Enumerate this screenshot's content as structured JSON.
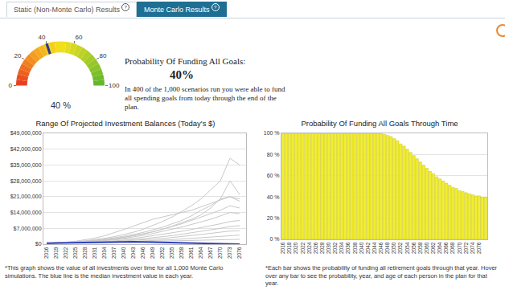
{
  "tabs": [
    {
      "label": "Static (Non-Monte Carlo) Results",
      "help_icon": "?",
      "active": false
    },
    {
      "label": "Monte Carlo Results",
      "help_icon": "?",
      "active": true
    }
  ],
  "summary": {
    "heading": "Probability Of Funding All Goals:",
    "value": "40%",
    "text": "In 400 of the 1,000 scenarios run you were able to fund all spending goals from today through the end of the plan."
  },
  "chart_data": [
    {
      "type": "gauge",
      "values": [
        40
      ],
      "value_labels": [
        "40 %"
      ],
      "color": "#1f3f8f",
      "ylim": [
        0,
        100
      ],
      "yticks": [
        0,
        20,
        40,
        60,
        80,
        100
      ]
    },
    {
      "type": "line",
      "title": "Range Of Projected Investment Balances (Today's $)",
      "x": [
        2016,
        2019,
        2022,
        2025,
        2028,
        2031,
        2034,
        2037,
        2040,
        2043,
        2046,
        2049,
        2052,
        2055,
        2058,
        2061,
        2064,
        2067,
        2070,
        2073,
        2076
      ],
      "series": [
        {
          "color": "#c8c8c8",
          "values": [
            400000,
            600000,
            800000,
            1100000,
            1500000,
            2000000,
            2600000,
            3300000,
            4200000,
            5300000,
            6600000,
            8200000,
            10000000,
            12000000,
            14500000,
            17000000,
            20000000,
            24000000,
            28000000,
            38000000,
            35000000
          ]
        },
        {
          "color": "#c8c8c8",
          "values": [
            400000,
            550000,
            750000,
            1000000,
            1300000,
            1700000,
            2200000,
            2800000,
            3500000,
            4300000,
            5200000,
            6300000,
            7500000,
            9000000,
            10500000,
            12500000,
            15000000,
            17000000,
            20000000,
            21000000,
            20000000
          ]
        },
        {
          "color": "#c8c8c8",
          "values": [
            400000,
            500000,
            700000,
            900000,
            1200000,
            1600000,
            2000000,
            2500000,
            3100000,
            3800000,
            4600000,
            5500000,
            6600000,
            8000000,
            9500000,
            11000000,
            13000000,
            16000000,
            20000000,
            28000000,
            22000000
          ]
        },
        {
          "color": "#c8c8c8",
          "values": [
            400000,
            550000,
            700000,
            900000,
            1200000,
            1500000,
            1900000,
            2400000,
            3000000,
            3700000,
            4500000,
            5400000,
            6500000,
            7800000,
            9000000,
            10500000,
            12000000,
            13500000,
            15000000,
            17000000,
            16000000
          ]
        },
        {
          "color": "#c8c8c8",
          "values": [
            400000,
            500000,
            650000,
            850000,
            1100000,
            1400000,
            1700000,
            2100000,
            2600000,
            3200000,
            3900000,
            4700000,
            5600000,
            6600000,
            7600000,
            8700000,
            9800000,
            11000000,
            12500000,
            14000000,
            13500000
          ]
        },
        {
          "color": "#c8c8c8",
          "values": [
            400000,
            500000,
            600000,
            800000,
            1000000,
            1200000,
            1500000,
            1800000,
            2200000,
            2600000,
            3100000,
            3700000,
            4300000,
            5000000,
            5700000,
            6500000,
            7300000,
            8200000,
            9000000,
            10000000,
            10500000
          ]
        },
        {
          "color": "#c8c8c8",
          "values": [
            400000,
            480000,
            580000,
            700000,
            850000,
            1000000,
            1200000,
            1400000,
            1700000,
            2000000,
            2400000,
            2800000,
            3300000,
            3800000,
            4400000,
            5000000,
            5600000,
            6300000,
            7000000,
            7800000,
            8200000
          ]
        },
        {
          "color": "#c8c8c8",
          "values": [
            400000,
            470000,
            550000,
            650000,
            780000,
            900000,
            1050000,
            1200000,
            1400000,
            1600000,
            1900000,
            2200000,
            2500000,
            2900000,
            3300000,
            3800000,
            4300000,
            4800000,
            5300000,
            5800000,
            6000000
          ]
        },
        {
          "color": "#c8c8c8",
          "values": [
            400000,
            460000,
            520000,
            600000,
            700000,
            800000,
            900000,
            1000000,
            1100000,
            1250000,
            1400000,
            1600000,
            1800000,
            2000000,
            2300000,
            2600000,
            2900000,
            3200000,
            3500000,
            3800000,
            4000000
          ]
        },
        {
          "color": "#c8c8c8",
          "values": [
            400000,
            450000,
            500000,
            560000,
            620000,
            700000,
            780000,
            860000,
            950000,
            1050000,
            1150000,
            1250000,
            1350000,
            1450000,
            1550000,
            1650000,
            1750000,
            1850000,
            1950000,
            2050000,
            2150000
          ]
        },
        {
          "color": "#c8c8c8",
          "values": [
            400000,
            600000,
            900000,
            1300000,
            1900000,
            2700000,
            3700000,
            5000000,
            6500000,
            8000000,
            9500000,
            11000000,
            12000000,
            13000000,
            14000000,
            15000000,
            16500000,
            18000000,
            19500000,
            21000000,
            19000000
          ]
        },
        {
          "color": "#2f3fbf",
          "values": [
            400000,
            500000,
            600000,
            700000,
            800000,
            900000,
            1000000,
            1100000,
            1150000,
            1100000,
            1000000,
            900000,
            800000,
            700000,
            550000,
            400000,
            250000,
            100000,
            0,
            0,
            0
          ]
        }
      ],
      "xlim": [
        2015,
        2078
      ],
      "xticks": [
        2016,
        2019,
        2022,
        2025,
        2028,
        2031,
        2034,
        2037,
        2040,
        2043,
        2046,
        2049,
        2052,
        2055,
        2058,
        2061,
        2064,
        2067,
        2070,
        2073,
        2076
      ],
      "ylim": [
        0,
        49000000
      ],
      "yticks": [
        {
          "value": 0,
          "label": "$0"
        },
        {
          "value": 7000000,
          "label": "$7,000,000"
        },
        {
          "value": 14000000,
          "label": "$14,000,000"
        },
        {
          "value": 21000000,
          "label": "$21,000,000"
        },
        {
          "value": 28000000,
          "label": "$28,000,000"
        },
        {
          "value": 35000000,
          "label": "$35,000,000"
        },
        {
          "value": 42000000,
          "label": "$42,000,000"
        },
        {
          "value": 49000000,
          "label": "$49,000,000"
        }
      ],
      "grid": true,
      "annotations": [
        "*This graph shows the value of all investments over time for all 1,000 Monte Carlo simulations. The blue line is the median investment value in each year."
      ]
    },
    {
      "type": "bar",
      "title": "Probability Of Funding All Goals Through Time",
      "x": [
        2016,
        2017,
        2018,
        2019,
        2020,
        2021,
        2022,
        2023,
        2024,
        2025,
        2026,
        2027,
        2028,
        2029,
        2030,
        2031,
        2032,
        2033,
        2034,
        2035,
        2036,
        2037,
        2038,
        2039,
        2040,
        2041,
        2042,
        2043,
        2044,
        2045,
        2046,
        2047,
        2048,
        2049,
        2050,
        2051,
        2052,
        2053,
        2054,
        2055,
        2056,
        2057,
        2058,
        2059,
        2060,
        2061,
        2062,
        2063,
        2064,
        2065,
        2066,
        2067,
        2068,
        2069,
        2070,
        2071,
        2072,
        2073,
        2074,
        2075,
        2076,
        2077,
        2078
      ],
      "values": [
        100,
        100,
        100,
        100,
        100,
        100,
        100,
        100,
        100,
        100,
        100,
        100,
        100,
        100,
        100,
        100,
        100,
        100,
        100,
        100,
        100,
        100,
        100,
        100,
        100,
        100,
        100,
        100,
        100,
        100,
        100,
        99,
        98,
        97,
        95,
        93,
        90,
        88,
        85,
        82,
        79,
        76,
        73,
        70,
        67,
        64,
        62,
        59,
        57,
        55,
        53,
        51,
        49,
        48,
        46,
        45,
        44,
        43,
        42,
        41,
        41,
        40,
        40
      ],
      "color": "#f2ee30",
      "xlim": [
        2015.5,
        2078.5
      ],
      "xticks": [
        2016,
        2018,
        2020,
        2022,
        2024,
        2026,
        2028,
        2030,
        2032,
        2034,
        2036,
        2038,
        2040,
        2042,
        2044,
        2046,
        2048,
        2050,
        2052,
        2054,
        2056,
        2058,
        2060,
        2062,
        2064,
        2066,
        2068,
        2070,
        2072,
        2074,
        2076
      ],
      "ylim": [
        0,
        100
      ],
      "yticks": [
        {
          "value": 0,
          "label": "0 %"
        },
        {
          "value": 20,
          "label": "20 %"
        },
        {
          "value": 40,
          "label": "40 %"
        },
        {
          "value": 60,
          "label": "60 %"
        },
        {
          "value": 80,
          "label": "80 %"
        },
        {
          "value": 100,
          "label": "100 %"
        }
      ],
      "grid": true,
      "annotations": [
        "*Each bar shows the probability of funding all retirement goals through that year. Hover over any bar to see the probability, year, and age of each person in the plan for that year."
      ]
    }
  ]
}
